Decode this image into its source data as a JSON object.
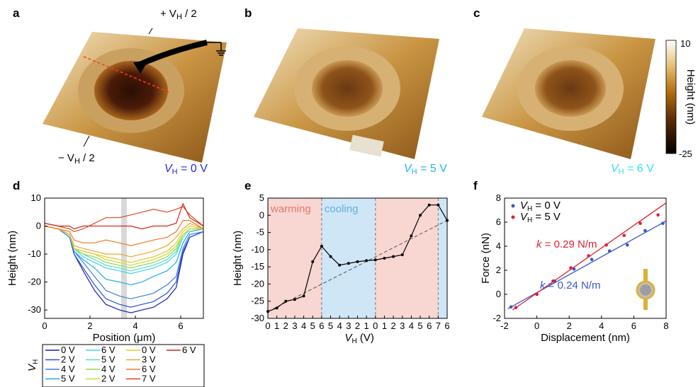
{
  "panel_labels": [
    "a",
    "b",
    "c",
    "d",
    "e",
    "f"
  ],
  "panel_a": {
    "top_contact": "+ V",
    "top_contact_sub": "H",
    "top_contact_suffix": " / 2",
    "bottom_contact": "− V",
    "bottom_contact_sub": "H",
    "bottom_contact_suffix": " / 2",
    "caption_sym": "V",
    "caption_sub": "H",
    "caption_val": " = 0 V",
    "caption_color": "#2a2adb"
  },
  "panel_b": {
    "caption_sym": "V",
    "caption_sub": "H",
    "caption_val": " = 5 V",
    "caption_color": "#21b5f0"
  },
  "panel_c": {
    "caption_sym": "V",
    "caption_sub": "H",
    "caption_val": " = 6 V",
    "caption_color": "#33e3ee"
  },
  "colorbar": {
    "max_label": "10",
    "min_label": "-25",
    "label": "Height (nm)"
  },
  "chart_data": [
    {
      "panel": "d",
      "type": "line",
      "xlabel": "Position (μm)",
      "ylabel": "Height (nm)",
      "xlim": [
        0,
        7
      ],
      "ylim": [
        -33,
        10
      ],
      "xticks": [
        0,
        2,
        4,
        6
      ],
      "yticks": [
        10,
        0,
        -10,
        -20,
        -30
      ],
      "highlight_x": 3.5,
      "legend_title": "V",
      "legend_title_sub": "H",
      "series": [
        {
          "name": "0 V",
          "color": "#1b1bb3",
          "points": [
            [
              0,
              0
            ],
            [
              0.6,
              -1
            ],
            [
              1.1,
              -4
            ],
            [
              1.3,
              -10
            ],
            [
              1.7,
              -16
            ],
            [
              2.2,
              -23
            ],
            [
              2.7,
              -28
            ],
            [
              3.3,
              -30
            ],
            [
              3.8,
              -31
            ],
            [
              4.3,
              -30
            ],
            [
              4.8,
              -29
            ],
            [
              5.4,
              -26
            ],
            [
              5.8,
              -22
            ],
            [
              6.1,
              -10
            ],
            [
              6.4,
              -4
            ],
            [
              7,
              -2
            ]
          ]
        },
        {
          "name": "2 V",
          "color": "#2a4fd6",
          "points": [
            [
              0,
              0
            ],
            [
              0.6,
              -1
            ],
            [
              1.1,
              -4
            ],
            [
              1.3,
              -10
            ],
            [
              1.7,
              -15
            ],
            [
              2.2,
              -21
            ],
            [
              2.7,
              -26
            ],
            [
              3.3,
              -28
            ],
            [
              3.8,
              -29
            ],
            [
              4.3,
              -28
            ],
            [
              4.8,
              -27
            ],
            [
              5.4,
              -24
            ],
            [
              5.8,
              -20
            ],
            [
              6.1,
              -9
            ],
            [
              6.4,
              -4
            ],
            [
              7,
              -2
            ]
          ]
        },
        {
          "name": "4 V",
          "color": "#3b7be8",
          "points": [
            [
              0,
              0
            ],
            [
              0.6,
              -1
            ],
            [
              1.1,
              -4
            ],
            [
              1.3,
              -9
            ],
            [
              1.7,
              -13
            ],
            [
              2.2,
              -18
            ],
            [
              2.7,
              -23
            ],
            [
              3.3,
              -25
            ],
            [
              3.8,
              -26
            ],
            [
              4.3,
              -25
            ],
            [
              4.8,
              -24
            ],
            [
              5.4,
              -21
            ],
            [
              5.8,
              -18
            ],
            [
              6.1,
              -8
            ],
            [
              6.4,
              -3
            ],
            [
              7,
              -2
            ]
          ]
        },
        {
          "name": "5 V",
          "color": "#21a9ef",
          "points": [
            [
              0,
              0
            ],
            [
              0.6,
              -1
            ],
            [
              1.1,
              -4
            ],
            [
              1.3,
              -9
            ],
            [
              1.7,
              -12
            ],
            [
              2.2,
              -15
            ],
            [
              2.7,
              -19
            ],
            [
              3.3,
              -20
            ],
            [
              3.8,
              -21
            ],
            [
              4.3,
              -20
            ],
            [
              4.8,
              -18
            ],
            [
              5.4,
              -16
            ],
            [
              5.8,
              -13
            ],
            [
              6.1,
              -6
            ],
            [
              6.4,
              -2
            ],
            [
              7,
              -1
            ]
          ]
        },
        {
          "name": "6 V",
          "color": "#39d7ea",
          "points": [
            [
              0,
              0
            ],
            [
              0.6,
              -1
            ],
            [
              1.1,
              -3
            ],
            [
              1.3,
              -8
            ],
            [
              1.7,
              -11
            ],
            [
              2.2,
              -13
            ],
            [
              2.7,
              -15
            ],
            [
              3.3,
              -16
            ],
            [
              3.8,
              -17
            ],
            [
              4.3,
              -16
            ],
            [
              4.8,
              -15
            ],
            [
              5.4,
              -13
            ],
            [
              5.8,
              -10
            ],
            [
              6.1,
              -4
            ],
            [
              6.4,
              -1
            ],
            [
              7,
              -1
            ]
          ]
        },
        {
          "name": "5 V",
          "color": "#55e0b8",
          "points": [
            [
              0,
              0
            ],
            [
              0.6,
              -1
            ],
            [
              1.1,
              -3
            ],
            [
              1.3,
              -8
            ],
            [
              1.7,
              -10
            ],
            [
              2.2,
              -12
            ],
            [
              2.7,
              -14
            ],
            [
              3.3,
              -15
            ],
            [
              3.8,
              -16
            ],
            [
              4.3,
              -15
            ],
            [
              4.8,
              -14
            ],
            [
              5.4,
              -12
            ],
            [
              5.8,
              -9
            ],
            [
              6.1,
              -4
            ],
            [
              6.4,
              -1
            ],
            [
              7,
              -1
            ]
          ]
        },
        {
          "name": "4 V",
          "color": "#8fd94a",
          "points": [
            [
              0,
              0
            ],
            [
              0.6,
              -1
            ],
            [
              1.1,
              -3
            ],
            [
              1.3,
              -8
            ],
            [
              1.7,
              -10
            ],
            [
              2.2,
              -11
            ],
            [
              2.7,
              -13
            ],
            [
              3.3,
              -14
            ],
            [
              3.8,
              -15
            ],
            [
              4.3,
              -14
            ],
            [
              4.8,
              -13
            ],
            [
              5.4,
              -11
            ],
            [
              5.8,
              -8
            ],
            [
              6.1,
              -3
            ],
            [
              6.4,
              -1
            ],
            [
              7,
              -1
            ]
          ]
        },
        {
          "name": "2 V",
          "color": "#c7dc35",
          "points": [
            [
              0,
              0
            ],
            [
              0.6,
              -1
            ],
            [
              1.1,
              -3
            ],
            [
              1.3,
              -8
            ],
            [
              1.7,
              -9
            ],
            [
              2.2,
              -10
            ],
            [
              2.7,
              -12
            ],
            [
              3.3,
              -13
            ],
            [
              3.8,
              -14
            ],
            [
              4.3,
              -13
            ],
            [
              4.8,
              -12
            ],
            [
              5.4,
              -10
            ],
            [
              5.8,
              -7
            ],
            [
              6.1,
              -3
            ],
            [
              6.4,
              -1
            ],
            [
              7,
              -1
            ]
          ]
        },
        {
          "name": "0 V",
          "color": "#e6c82f",
          "points": [
            [
              0,
              0
            ],
            [
              0.6,
              -1
            ],
            [
              1.1,
              -3
            ],
            [
              1.3,
              -8
            ],
            [
              1.7,
              -9
            ],
            [
              2.2,
              -10
            ],
            [
              2.7,
              -11
            ],
            [
              3.3,
              -12
            ],
            [
              3.8,
              -13
            ],
            [
              4.3,
              -12
            ],
            [
              4.8,
              -11
            ],
            [
              5.4,
              -9
            ],
            [
              5.8,
              -6
            ],
            [
              6.1,
              -2
            ],
            [
              6.4,
              0
            ],
            [
              7,
              -1
            ]
          ]
        },
        {
          "name": "3 V",
          "color": "#f0a72c",
          "points": [
            [
              0,
              0
            ],
            [
              0.6,
              -1
            ],
            [
              1.1,
              -3
            ],
            [
              1.3,
              -7
            ],
            [
              1.7,
              -8
            ],
            [
              2.2,
              -9
            ],
            [
              2.7,
              -10
            ],
            [
              3.3,
              -10
            ],
            [
              3.8,
              -11
            ],
            [
              4.3,
              -10
            ],
            [
              4.8,
              -9
            ],
            [
              5.4,
              -7
            ],
            [
              5.8,
              -4
            ],
            [
              6.1,
              -1
            ],
            [
              6.4,
              1
            ],
            [
              7,
              -1
            ]
          ]
        },
        {
          "name": "6 V",
          "color": "#f07a26",
          "points": [
            [
              0,
              0
            ],
            [
              0.6,
              -1
            ],
            [
              1.1,
              -2
            ],
            [
              1.3,
              -5
            ],
            [
              1.7,
              -6
            ],
            [
              2.2,
              -6
            ],
            [
              2.7,
              -5
            ],
            [
              3.3,
              -6
            ],
            [
              3.8,
              -7
            ],
            [
              4.3,
              -6
            ],
            [
              4.8,
              -5
            ],
            [
              5.4,
              -4
            ],
            [
              5.8,
              -2
            ],
            [
              6.1,
              2
            ],
            [
              6.4,
              2
            ],
            [
              7,
              -1
            ]
          ]
        },
        {
          "name": "7 V",
          "color": "#e0441e",
          "points": [
            [
              0,
              1
            ],
            [
              0.6,
              0
            ],
            [
              1.1,
              -1
            ],
            [
              1.3,
              -2
            ],
            [
              1.7,
              -1
            ],
            [
              2.2,
              1
            ],
            [
              2.7,
              3
            ],
            [
              3.3,
              3
            ],
            [
              3.8,
              4
            ],
            [
              4.3,
              5
            ],
            [
              4.8,
              6
            ],
            [
              5.4,
              5
            ],
            [
              5.8,
              6
            ],
            [
              6.1,
              7
            ],
            [
              6.4,
              4
            ],
            [
              7,
              0
            ]
          ]
        },
        {
          "name": "6 V",
          "color": "#d4271a",
          "points": [
            [
              0,
              1
            ],
            [
              0.6,
              0
            ],
            [
              1.1,
              0
            ],
            [
              1.3,
              -1
            ],
            [
              1.7,
              0
            ],
            [
              2.2,
              0
            ],
            [
              2.7,
              0
            ],
            [
              3.3,
              0
            ],
            [
              3.8,
              0
            ],
            [
              4.3,
              -1
            ],
            [
              4.8,
              0
            ],
            [
              5.4,
              0
            ],
            [
              5.8,
              1
            ],
            [
              6.1,
              8
            ],
            [
              6.4,
              3
            ],
            [
              7,
              0
            ]
          ]
        }
      ]
    },
    {
      "panel": "e",
      "type": "line",
      "xlabel": "V",
      "xlabel_sub": "H",
      "xlabel_unit": " (V)",
      "ylabel": "Height (nm)",
      "ylim": [
        -30,
        5
      ],
      "yticks": [
        5,
        0,
        -5,
        -10,
        -15,
        -20,
        -25,
        -30
      ],
      "xticks": [
        "0",
        "1",
        "2",
        "3",
        "4",
        "5",
        "6",
        "5",
        "4",
        "3",
        "2",
        "1",
        "0",
        "1",
        "2",
        "3",
        "4",
        "5",
        "6",
        "7",
        "6"
      ],
      "regions": [
        {
          "label": "warming",
          "from": 0,
          "to": 6,
          "color": "#f8d6d2"
        },
        {
          "label": "cooling",
          "from": 6,
          "to": 12,
          "color": "#cfe6f7"
        },
        {
          "label": "",
          "from": 12,
          "to": 19,
          "color": "#f8d6d2"
        },
        {
          "label": "",
          "from": 19,
          "to": 20,
          "color": "#cfe6f7"
        }
      ],
      "region_label_colors": {
        "warming": "#e07b6e",
        "cooling": "#5fb0e0"
      },
      "dividers": [
        6,
        12,
        19
      ],
      "values": [
        -28,
        -27,
        -25,
        -24.5,
        -23.5,
        -13.5,
        -9,
        -12,
        -14.5,
        -14,
        -13.5,
        -13.2,
        -13,
        -12.5,
        -12,
        -11.5,
        -6,
        0,
        3,
        3,
        -1.5
      ],
      "trend": [
        [
          0,
          -28
        ],
        [
          20,
          -1.5
        ]
      ]
    },
    {
      "panel": "f",
      "type": "scatter",
      "xlabel": "Displacement (nm)",
      "ylabel": "Force (nN)",
      "xlim": [
        -2,
        8
      ],
      "ylim": [
        -2,
        8
      ],
      "xticks": [
        -2,
        0,
        2,
        4,
        6,
        8
      ],
      "yticks": [
        -2,
        0,
        2,
        4,
        6,
        8
      ],
      "series": [
        {
          "name_sym": "V",
          "name_sub": "H",
          "name_val": " = 0 V",
          "color": "#3a55c8",
          "x": [
            -1.6,
            -0.0,
            1.1,
            2.3,
            3.4,
            4.5,
            5.6,
            6.7,
            7.8
          ],
          "y": [
            -1.05,
            0.0,
            1.1,
            2.1,
            2.9,
            3.6,
            4.1,
            5.3,
            5.9
          ],
          "fit_label_sym": "k",
          "fit_label_val": " = 0.24 N/m",
          "fit": [
            [
              -1.8,
              -1.2
            ],
            [
              8,
              6.1
            ]
          ]
        },
        {
          "name_sym": "V",
          "name_sub": "H",
          "name_val": " = 5 V",
          "color": "#e02030",
          "x": [
            -1.3,
            0.0,
            1.0,
            2.1,
            3.2,
            4.3,
            5.4,
            6.4,
            7.5
          ],
          "y": [
            -1.1,
            0.0,
            1.1,
            2.2,
            3.2,
            4.1,
            4.9,
            5.9,
            6.6
          ],
          "fit_label_sym": "k",
          "fit_label_val": " = 0.29 N/m",
          "fit": [
            [
              -1.5,
              -1.3
            ],
            [
              8,
              7.6
            ]
          ]
        }
      ]
    }
  ]
}
